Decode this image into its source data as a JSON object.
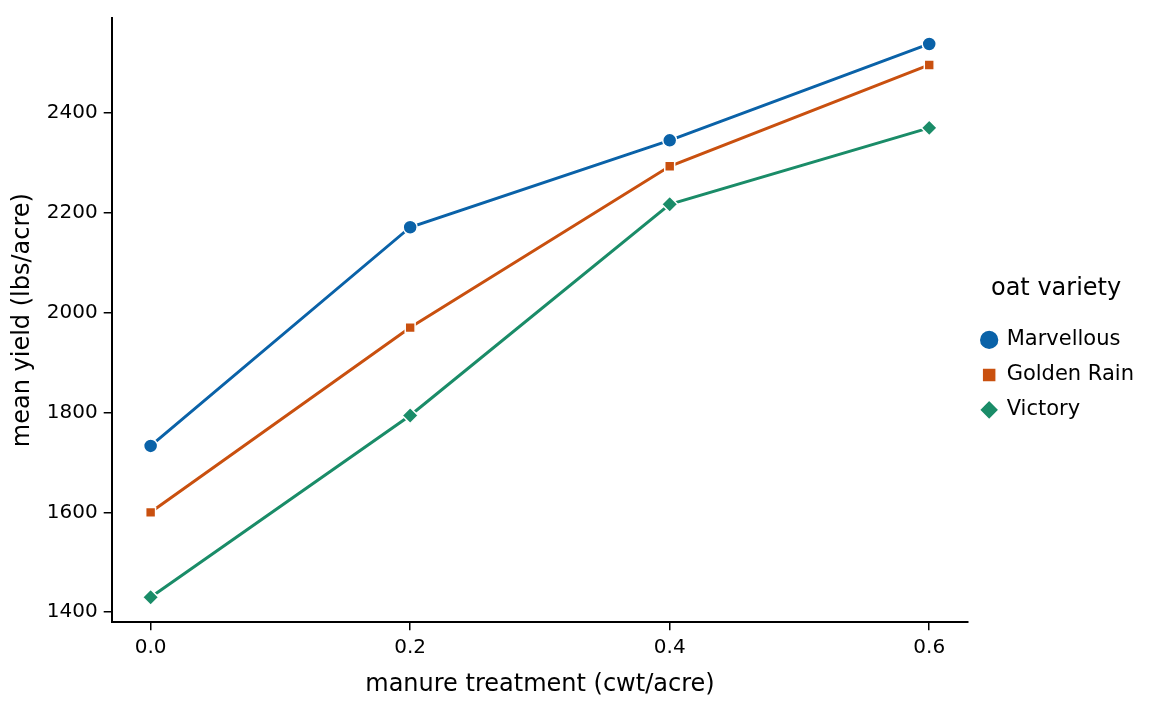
{
  "chart_data": {
    "type": "line",
    "x_label": "manure treatment (cwt/acre)",
    "y_label": "mean yield (lbs/acre)",
    "legend_title": "oat variety",
    "x": [
      0,
      0.2,
      0.4,
      0.6
    ],
    "series": [
      {
        "name": "Marvellous",
        "color": "#0a62a8",
        "marker": "circle",
        "values": [
          1733,
          2171,
          2345,
          2538
        ]
      },
      {
        "name": "Golden Rain",
        "color": "#c9500f",
        "marker": "square",
        "values": [
          1600,
          1970,
          2293,
          2496
        ]
      },
      {
        "name": "Victory",
        "color": "#1a8c68",
        "marker": "diamond",
        "values": [
          1430,
          1794,
          2217,
          2370
        ]
      }
    ],
    "xlim": [
      -0.03,
      0.63
    ],
    "xticks": [
      {
        "value": 0,
        "label": "0.0"
      },
      0.2,
      0.4,
      0.6
    ],
    "ylim": [
      1380,
      2590
    ],
    "yticks": [
      1400,
      1600,
      1800,
      2000,
      2200,
      2400
    ],
    "grid": false,
    "legend": "right"
  }
}
